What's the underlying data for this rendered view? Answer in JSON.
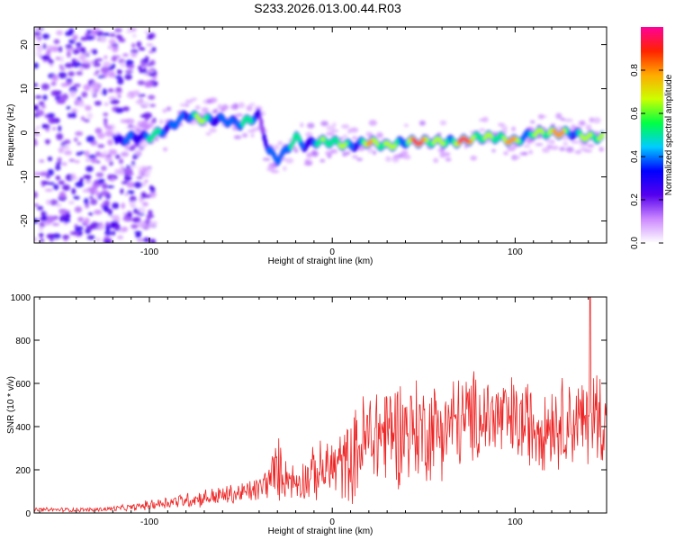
{
  "title": "S233.2026.013.00.44.R03",
  "colorbar": {
    "label": "Normalized spectral amplitude",
    "ticks": [
      0.0,
      0.2,
      0.4,
      0.6,
      0.8
    ],
    "tick_labels": [
      "0.0",
      "0.2",
      "0.4",
      "0.6",
      "0.8"
    ],
    "colors": [
      "#ffffff",
      "#cc88ff",
      "#5500ee",
      "#0000ff",
      "#00ccff",
      "#00ff44",
      "#ccff00",
      "#ffaa00",
      "#ff2200",
      "#ff0099"
    ]
  },
  "chart_data": [
    {
      "type": "heatmap",
      "xlabel": "Height of straight line (km)",
      "ylabel": "Frequency (Hz)",
      "xlim": [
        -163,
        150
      ],
      "ylim": [
        -25,
        24
      ],
      "xticks": [
        -100,
        0,
        100
      ],
      "xtick_labels": [
        "-100",
        "0",
        "100"
      ],
      "yticks": [
        -20,
        -10,
        0,
        10,
        20
      ],
      "ytick_labels": [
        "-20",
        "-10",
        "0",
        "10",
        "20"
      ],
      "ridge": {
        "x": [
          -118,
          -110,
          -100,
          -90,
          -80,
          -70,
          -60,
          -50,
          -45,
          -40,
          -35,
          -30,
          -25,
          -20,
          -15,
          -10,
          0,
          10,
          20,
          30,
          40,
          50,
          60,
          70,
          80,
          90,
          100,
          110,
          120,
          130,
          140,
          148
        ],
        "y": [
          -2,
          -1,
          -1,
          1,
          4,
          3,
          3,
          2,
          3,
          4,
          -4,
          -6,
          -4,
          -1,
          -3,
          -2,
          -2,
          -3,
          -2,
          -3,
          -2,
          -2,
          -2,
          -2,
          -1,
          -1,
          -2,
          0,
          0,
          0,
          -1,
          -1
        ],
        "amplitude": [
          0.35,
          0.45,
          0.5,
          0.5,
          0.55,
          0.55,
          0.5,
          0.5,
          0.45,
          0.45,
          0.5,
          0.5,
          0.45,
          0.5,
          0.55,
          0.6,
          0.6,
          0.65,
          0.7,
          0.75,
          0.85,
          0.85,
          0.8,
          0.85,
          0.85,
          0.8,
          0.7,
          0.75,
          0.8,
          0.75,
          0.7,
          0.7
        ]
      },
      "noise_region": {
        "x_from": -163,
        "x_to": -105,
        "amplitude": 0.15
      }
    },
    {
      "type": "line",
      "xlabel": "Height of straight line (km)",
      "ylabel": "SNR (10 * v/v)",
      "xlim": [
        -163,
        150
      ],
      "ylim": [
        0,
        1000
      ],
      "xticks": [
        -100,
        0,
        100
      ],
      "xtick_labels": [
        "-100",
        "0",
        "100"
      ],
      "yticks": [
        0,
        200,
        400,
        600,
        800,
        1000
      ],
      "ytick_labels": [
        "0",
        "200",
        "400",
        "600",
        "800",
        "1000"
      ],
      "color": "#ee2222",
      "envelope": {
        "x": [
          -163,
          -130,
          -110,
          -90,
          -70,
          -50,
          -40,
          -35,
          -30,
          -25,
          -20,
          -15,
          -10,
          0,
          10,
          15,
          20,
          30,
          40,
          50,
          60,
          70,
          80,
          90,
          100,
          110,
          120,
          130,
          140,
          145,
          150
        ],
        "mean": [
          15,
          15,
          25,
          50,
          70,
          90,
          110,
          150,
          200,
          170,
          140,
          160,
          180,
          210,
          240,
          300,
          350,
          380,
          390,
          380,
          400,
          420,
          450,
          440,
          420,
          410,
          420,
          430,
          410,
          450,
          420
        ],
        "amp": [
          10,
          10,
          15,
          30,
          40,
          50,
          60,
          80,
          150,
          90,
          80,
          100,
          120,
          150,
          180,
          220,
          250,
          250,
          240,
          230,
          220,
          220,
          200,
          200,
          200,
          200,
          200,
          200,
          200,
          250,
          200
        ]
      },
      "peak": {
        "x": 141,
        "y": 1000
      }
    }
  ]
}
